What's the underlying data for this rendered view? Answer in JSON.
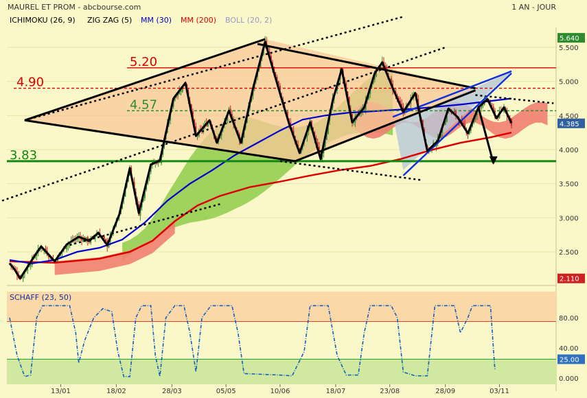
{
  "header": {
    "title": "MAUREL ET PROM - abcbourse.com",
    "period": "1 AN - JOUR"
  },
  "legend": [
    {
      "label": "ICHIMOKU (26, 9)",
      "color": "#000000"
    },
    {
      "label": "ZIG ZAG (5)",
      "color": "#000000"
    },
    {
      "label": "MM (30)",
      "color": "#0000CC"
    },
    {
      "label": "MM (200)",
      "color": "#DD0000"
    },
    {
      "label": "BOLL (20, 2)",
      "color": "#9999CC"
    }
  ],
  "colors": {
    "background": "#FAF8C8",
    "grid": "#E8E4A8",
    "up_candle": "#2E8B2E",
    "down_candle": "#CC2222",
    "mm30": "#0000CC",
    "mm200": "#DD0000",
    "cloud_green": "#8FCC4A",
    "cloud_red": "#F08070",
    "channel_fill": "#F8C89A",
    "wedge_fill": "#B8C8D8"
  },
  "chart_data": [
    {
      "type": "candlestick",
      "title": "MAUREL ET PROM",
      "x_ticks": [
        "13/01",
        "18/02",
        "28/03",
        "05/05",
        "10/06",
        "18/07",
        "23/08",
        "28/09",
        "03/11"
      ],
      "y_ticks": [
        "2.500",
        "3.000",
        "3.500",
        "4.000",
        "4.500",
        "5.000",
        "5.500"
      ],
      "ylim": [
        2.0,
        5.75
      ],
      "price_labels": [
        {
          "text": "5.640",
          "value": 5.64,
          "color": "#2E8B2E"
        },
        {
          "text": "4.385",
          "value": 4.385,
          "color": "#3060A0"
        },
        {
          "text": "2.110",
          "value": 2.11,
          "color": "#CC2222"
        }
      ],
      "levels": [
        {
          "label": "5.20",
          "value": 5.2,
          "color": "#DD0000",
          "style": "solid"
        },
        {
          "label": "4.90",
          "value": 4.9,
          "color": "#DD0000",
          "style": "dashed"
        },
        {
          "label": "4.57",
          "value": 4.57,
          "color": "#2E8B2E",
          "style": "dashed"
        },
        {
          "label": "3.83",
          "value": 3.83,
          "color": "#118811",
          "style": "solid"
        }
      ],
      "zigzag_close": [
        [
          0,
          2.33
        ],
        [
          3,
          2.25
        ],
        [
          7,
          2.11
        ],
        [
          16,
          2.42
        ],
        [
          21,
          2.58
        ],
        [
          30,
          2.36
        ],
        [
          38,
          2.61
        ],
        [
          46,
          2.72
        ],
        [
          53,
          2.66
        ],
        [
          59,
          2.78
        ],
        [
          65,
          2.6
        ],
        [
          73,
          3.05
        ],
        [
          80,
          3.73
        ],
        [
          86,
          3.07
        ],
        [
          94,
          3.78
        ],
        [
          100,
          3.84
        ],
        [
          109,
          4.75
        ],
        [
          117,
          4.98
        ],
        [
          124,
          4.2
        ],
        [
          133,
          4.43
        ],
        [
          138,
          4.1
        ],
        [
          146,
          4.57
        ],
        [
          154,
          4.1
        ],
        [
          162,
          4.9
        ],
        [
          170,
          5.58
        ],
        [
          180,
          4.82
        ],
        [
          186,
          4.38
        ],
        [
          193,
          3.95
        ],
        [
          200,
          4.4
        ],
        [
          207,
          3.86
        ],
        [
          215,
          4.72
        ],
        [
          221,
          5.18
        ],
        [
          228,
          4.4
        ],
        [
          236,
          4.62
        ],
        [
          243,
          5.12
        ],
        [
          248,
          5.28
        ],
        [
          255,
          4.9
        ],
        [
          262,
          4.55
        ],
        [
          270,
          4.83
        ],
        [
          278,
          3.98
        ],
        [
          285,
          4.13
        ],
        [
          292,
          4.6
        ],
        [
          298,
          4.48
        ],
        [
          305,
          4.24
        ],
        [
          312,
          4.62
        ],
        [
          318,
          4.74
        ],
        [
          324,
          4.46
        ],
        [
          329,
          4.62
        ],
        [
          334,
          4.39
        ]
      ],
      "mm30": [
        [
          0,
          2.38
        ],
        [
          15,
          2.33
        ],
        [
          30,
          2.38
        ],
        [
          45,
          2.5
        ],
        [
          60,
          2.56
        ],
        [
          75,
          2.68
        ],
        [
          90,
          2.93
        ],
        [
          105,
          3.25
        ],
        [
          120,
          3.5
        ],
        [
          135,
          3.7
        ],
        [
          150,
          3.92
        ],
        [
          165,
          4.1
        ],
        [
          180,
          4.28
        ],
        [
          195,
          4.44
        ],
        [
          210,
          4.5
        ],
        [
          225,
          4.54
        ],
        [
          240,
          4.56
        ],
        [
          255,
          4.58
        ],
        [
          270,
          4.6
        ],
        [
          285,
          4.63
        ],
        [
          300,
          4.66
        ],
        [
          315,
          4.7
        ],
        [
          334,
          4.75
        ]
      ],
      "mm200": [
        [
          0,
          2.36
        ],
        [
          30,
          2.34
        ],
        [
          60,
          2.4
        ],
        [
          80,
          2.5
        ],
        [
          95,
          2.66
        ],
        [
          110,
          2.95
        ],
        [
          125,
          3.18
        ],
        [
          140,
          3.32
        ],
        [
          160,
          3.45
        ],
        [
          180,
          3.53
        ],
        [
          200,
          3.62
        ],
        [
          220,
          3.7
        ],
        [
          240,
          3.76
        ],
        [
          260,
          3.86
        ],
        [
          280,
          3.99
        ],
        [
          300,
          4.1
        ],
        [
          320,
          4.18
        ],
        [
          334,
          4.25
        ]
      ],
      "trendlines": [
        {
          "name": "upper-channel",
          "from": [
            10,
            4.43
          ],
          "to": [
            170,
            5.62
          ]
        },
        {
          "name": "lower-channel",
          "from": [
            10,
            4.43
          ],
          "to": [
            190,
            3.83
          ]
        },
        {
          "name": "desc-top",
          "from": [
            165,
            5.55
          ],
          "to": [
            310,
            4.9
          ]
        },
        {
          "name": "desc-bottom",
          "from": [
            190,
            3.83
          ],
          "to": [
            310,
            4.87
          ]
        },
        {
          "name": "wedge-upper",
          "from": [
            255,
            4.48
          ],
          "to": [
            334,
            5.15
          ]
        },
        {
          "name": "wedge-lower",
          "from": [
            262,
            3.62
          ],
          "to": [
            334,
            5.12
          ]
        },
        {
          "name": "projection",
          "from": [
            312,
            4.62
          ],
          "to": [
            322,
            3.8
          ]
        }
      ]
    },
    {
      "type": "line",
      "title": "SCHAFF (23, 50)",
      "ylim": [
        -5,
        110
      ],
      "y_ticks": [
        "0.000",
        "40.00",
        "80.00"
      ],
      "levels": [
        {
          "value": 25,
          "label": "25.00"
        },
        {
          "value": 75,
          "label": ""
        }
      ],
      "values": [
        [
          0,
          80
        ],
        [
          5,
          30
        ],
        [
          10,
          2
        ],
        [
          14,
          4
        ],
        [
          18,
          80
        ],
        [
          22,
          96
        ],
        [
          40,
          96
        ],
        [
          44,
          60
        ],
        [
          46,
          20
        ],
        [
          50,
          50
        ],
        [
          56,
          80
        ],
        [
          62,
          92
        ],
        [
          68,
          88
        ],
        [
          72,
          35
        ],
        [
          76,
          2
        ],
        [
          80,
          2
        ],
        [
          84,
          80
        ],
        [
          88,
          96
        ],
        [
          94,
          96
        ],
        [
          97,
          30
        ],
        [
          100,
          2
        ],
        [
          104,
          80
        ],
        [
          110,
          96
        ],
        [
          116,
          96
        ],
        [
          120,
          60
        ],
        [
          124,
          8
        ],
        [
          128,
          80
        ],
        [
          134,
          96
        ],
        [
          148,
          96
        ],
        [
          152,
          60
        ],
        [
          156,
          6
        ],
        [
          180,
          4
        ],
        [
          188,
          3
        ],
        [
          196,
          35
        ],
        [
          200,
          96
        ],
        [
          212,
          96
        ],
        [
          218,
          30
        ],
        [
          224,
          4
        ],
        [
          232,
          4
        ],
        [
          236,
          60
        ],
        [
          240,
          96
        ],
        [
          254,
          96
        ],
        [
          258,
          80
        ],
        [
          262,
          8
        ],
        [
          270,
          3
        ],
        [
          278,
          3
        ],
        [
          283,
          96
        ],
        [
          296,
          96
        ],
        [
          300,
          60
        ],
        [
          303,
          72
        ],
        [
          305,
          80
        ],
        [
          308,
          96
        ],
        [
          320,
          96
        ],
        [
          323,
          10
        ]
      ]
    }
  ]
}
